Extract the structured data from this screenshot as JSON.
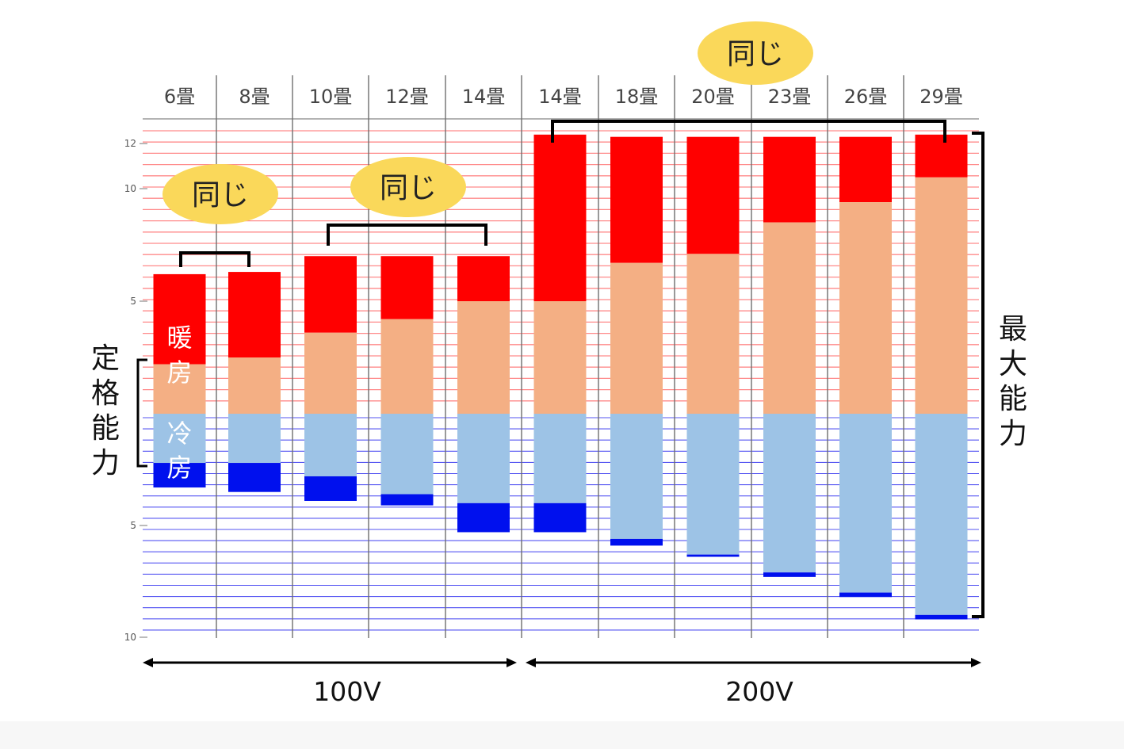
{
  "chart_data": {
    "type": "bar",
    "categories": [
      "6畳",
      "8畳",
      "10畳",
      "12畳",
      "14畳",
      "14畳",
      "18畳",
      "20畳",
      "23畳",
      "26畳",
      "29畳"
    ],
    "heating_axis": {
      "ticks": [
        12,
        10,
        5
      ],
      "tick_labels": [
        "12",
        "10",
        "5"
      ],
      "ylim": [
        0,
        12.8
      ]
    },
    "cooling_axis": {
      "ticks": [
        5,
        10
      ],
      "tick_labels": [
        "5",
        "10"
      ],
      "ylim": [
        0,
        10
      ]
    },
    "series": [
      {
        "name": "暖房",
        "kind": "heating_rated",
        "values": [
          2.2,
          2.5,
          3.6,
          4.2,
          5.0,
          5.0,
          6.7,
          7.1,
          8.5,
          9.4,
          10.5
        ]
      },
      {
        "name": "暖房",
        "kind": "heating_max",
        "values": [
          6.2,
          6.3,
          7.0,
          7.0,
          7.0,
          12.4,
          12.3,
          12.3,
          12.3,
          12.3,
          12.4
        ]
      },
      {
        "name": "冷房",
        "kind": "cooling_rated",
        "values": [
          2.2,
          2.2,
          2.8,
          3.6,
          4.0,
          4.0,
          5.6,
          6.3,
          7.1,
          8.0,
          9.0
        ]
      },
      {
        "name": "冷房",
        "kind": "cooling_max",
        "values": [
          3.3,
          3.5,
          3.9,
          4.1,
          5.3,
          5.3,
          5.9,
          6.4,
          7.3,
          8.2,
          9.2
        ]
      }
    ],
    "colors": {
      "heating_max": "#ff0000",
      "heating_rated": "#f4af84",
      "cooling_rated": "#9dc3e6",
      "cooling_max": "#0010ee",
      "grid_heat": "#ff8a8a",
      "grid_cool": "#2a2af0",
      "badge": "#fad85a"
    },
    "labels": {
      "heating_bar_label": "暖房",
      "cooling_bar_label": "冷房",
      "rated_capacity": "定格能力",
      "max_capacity": "最大能力",
      "same": "同じ",
      "voltage_100": "100V",
      "voltage_200": "200V"
    }
  }
}
